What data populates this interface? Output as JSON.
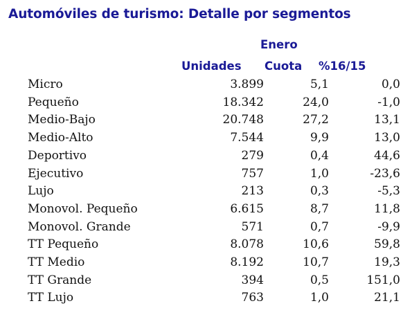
{
  "title": "Automóviles de turismo: Detalle por segmentos",
  "chart_data": {
    "type": "table",
    "group_header": "Enero",
    "columns": [
      "Unidades",
      "Cuota",
      "%16/15"
    ],
    "rows": [
      {
        "segment": "Micro",
        "unidades": "3.899",
        "cuota": "5,1",
        "var": "0,0"
      },
      {
        "segment": "Pequeño",
        "unidades": "18.342",
        "cuota": "24,0",
        "var": "-1,0"
      },
      {
        "segment": "Medio-Bajo",
        "unidades": "20.748",
        "cuota": "27,2",
        "var": "13,1"
      },
      {
        "segment": "Medio-Alto",
        "unidades": "7.544",
        "cuota": "9,9",
        "var": "13,0"
      },
      {
        "segment": "Deportivo",
        "unidades": "279",
        "cuota": "0,4",
        "var": "44,6"
      },
      {
        "segment": "Ejecutivo",
        "unidades": "757",
        "cuota": "1,0",
        "var": "-23,6"
      },
      {
        "segment": "Lujo",
        "unidades": "213",
        "cuota": "0,3",
        "var": "-5,3"
      },
      {
        "segment": "Monovol. Pequeño",
        "unidades": "6.615",
        "cuota": "8,7",
        "var": "11,8"
      },
      {
        "segment": "Monovol. Grande",
        "unidades": "571",
        "cuota": "0,7",
        "var": "-9,9"
      },
      {
        "segment": "TT Pequeño",
        "unidades": "8.078",
        "cuota": "10,6",
        "var": "59,8"
      },
      {
        "segment": "TT Medio",
        "unidades": "8.192",
        "cuota": "10,7",
        "var": "19,3"
      },
      {
        "segment": "TT Grande",
        "unidades": "394",
        "cuota": "0,5",
        "var": "151,0"
      },
      {
        "segment": "TT Lujo",
        "unidades": "763",
        "cuota": "1,0",
        "var": "21,1"
      }
    ]
  },
  "colors": {
    "header_text": "#1a1a96",
    "body_text": "#111111",
    "background": "#ffffff"
  }
}
